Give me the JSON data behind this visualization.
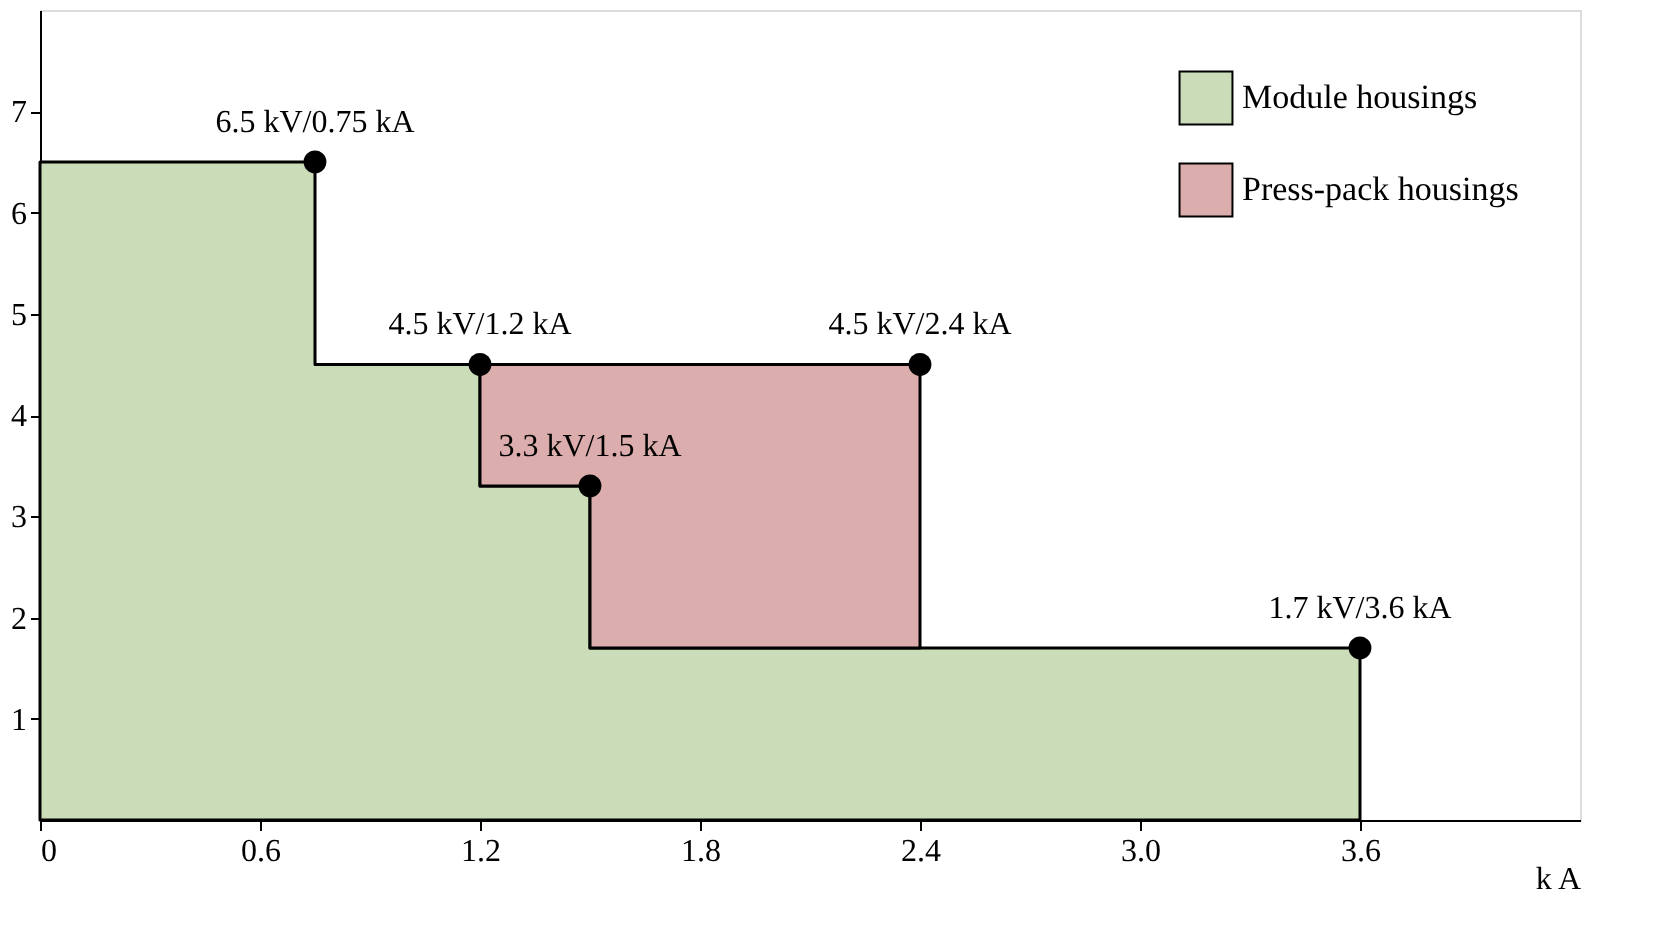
{
  "chart_data": {
    "type": "area",
    "stacked": true,
    "line_style": "solid",
    "xlabel": "k A",
    "x": [
      0,
      0.75,
      1.2,
      1.5,
      2.4,
      3.6
    ],
    "series": [
      {
        "name": "Module housings",
        "color": "#cbdcb9",
        "values": [
          6.5,
          4.5,
          3.3,
          1.7,
          1.7,
          1.7
        ]
      },
      {
        "name": "Press-pack housings",
        "color": "#dcadad",
        "values": [
          null,
          null,
          1.2,
          2.8,
          0,
          null
        ]
      },
      {
        "type": "scatter",
        "marker": "circle",
        "color": "#000000",
        "x": [
          0.75,
          1.2,
          1.5,
          2.4,
          3.6
        ],
        "values": [
          6.5,
          4.5,
          3.3,
          4.5,
          1.7
        ]
      }
    ],
    "xlim": [
      0,
      4.2
    ],
    "xticks": [
      0,
      0.6,
      1.2,
      1.8,
      2.4,
      {
        "value": 3,
        "label": "3.0"
      },
      3.6
    ],
    "ylim": [
      0,
      8
    ],
    "yticks": [
      1,
      2,
      3,
      4,
      5,
      6,
      7
    ],
    "grid": false,
    "legend": "top right",
    "annotations": [
      {
        "text": "6.5 kV/0.75 kA",
        "x": 0.75,
        "y": 6.5
      },
      {
        "text": "4.5 kV/1.2 kA",
        "x": 1.2,
        "y": 4.5
      },
      {
        "text": "3.3 kV/1.5 kA",
        "x": 1.5,
        "y": 3.3
      },
      {
        "text": "4.5 kV/2.4 kA",
        "x": 2.4,
        "y": 4.5
      },
      {
        "text": "1.7 kV/3.6 kA",
        "x": 3.6,
        "y": 1.7
      }
    ]
  }
}
